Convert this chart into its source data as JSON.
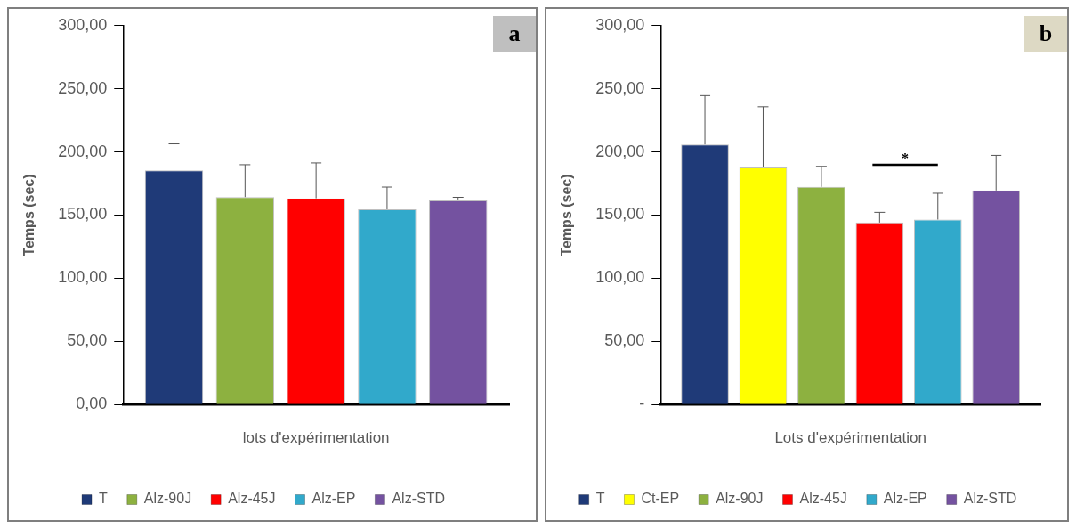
{
  "chart_data": [
    {
      "type": "bar",
      "ylabel": "Temps (sec)",
      "xlabel": "lots d'expérimentation",
      "annotations": [
        "a"
      ],
      "categories": [
        null
      ],
      "legend": "bottom",
      "grid": false,
      "ylim": [
        0,
        300
      ],
      "yticks": [
        {
          "value": 0,
          "label": "0,00"
        },
        {
          "value": 50,
          "label": "50,00"
        },
        {
          "value": 100,
          "label": "100,00"
        },
        {
          "value": 150,
          "label": "150,00"
        },
        {
          "value": 200,
          "label": "200,00"
        },
        {
          "value": 250,
          "label": "250,00"
        },
        {
          "value": 300,
          "label": "300,00"
        }
      ],
      "series": [
        {
          "name": "T",
          "color": "#1f3a78",
          "values": [
            185.4
          ],
          "errors": [
            [
              185.4,
              206.4
            ]
          ]
        },
        {
          "name": "Alz-90J",
          "color": "#8db140",
          "values": [
            164.3
          ],
          "errors": [
            [
              164.3,
              189.9
            ]
          ]
        },
        {
          "name": "Alz-45J",
          "color": "#ff0000",
          "values": [
            163.3
          ],
          "errors": [
            [
              163.3,
              191.3
            ]
          ]
        },
        {
          "name": "Alz-EP",
          "color": "#31a9cb",
          "values": [
            154.6
          ],
          "errors": [
            [
              154.6,
              172.2
            ]
          ]
        },
        {
          "name": "Alz-STD",
          "color": "#7452a0",
          "values": [
            161.7
          ],
          "errors": [
            [
              161.7,
              164.1
            ]
          ]
        }
      ]
    },
    {
      "type": "bar",
      "ylabel": "Temps (sec)",
      "xlabel": "Lots d'expérimentation",
      "annotations": [
        "b",
        "*"
      ],
      "categories": [
        null
      ],
      "legend": "bottom",
      "grid": false,
      "ylim": [
        0,
        300
      ],
      "yticks": [
        {
          "value": 0,
          "label": "-"
        },
        {
          "value": 50,
          "label": "50,00"
        },
        {
          "value": 100,
          "label": "100,00"
        },
        {
          "value": 150,
          "label": "150,00"
        },
        {
          "value": 200,
          "label": "200,00"
        },
        {
          "value": 250,
          "label": "250,00"
        },
        {
          "value": 300,
          "label": "300,00"
        }
      ],
      "series": [
        {
          "name": "T",
          "color": "#1f3a78",
          "values": [
            205.9
          ],
          "errors": [
            [
              205.9,
              244.6
            ]
          ]
        },
        {
          "name": "Ct-EP",
          "color": "#ffff00",
          "values": [
            187.8
          ],
          "errors": [
            [
              187.8,
              235.8
            ]
          ]
        },
        {
          "name": "Alz-90J",
          "color": "#8db140",
          "values": [
            172.4
          ],
          "errors": [
            [
              172.4,
              188.6
            ]
          ]
        },
        {
          "name": "Alz-45J",
          "color": "#ff0000",
          "values": [
            144.1
          ],
          "errors": [
            [
              144.1,
              152.2
            ]
          ]
        },
        {
          "name": "Alz-EP",
          "color": "#31a9cb",
          "values": [
            146.5
          ],
          "errors": [
            [
              146.5,
              167.3
            ]
          ]
        },
        {
          "name": "Alz-STD",
          "color": "#7452a0",
          "values": [
            169.5
          ],
          "errors": [
            [
              169.5,
              197.3
            ]
          ]
        }
      ]
    }
  ]
}
